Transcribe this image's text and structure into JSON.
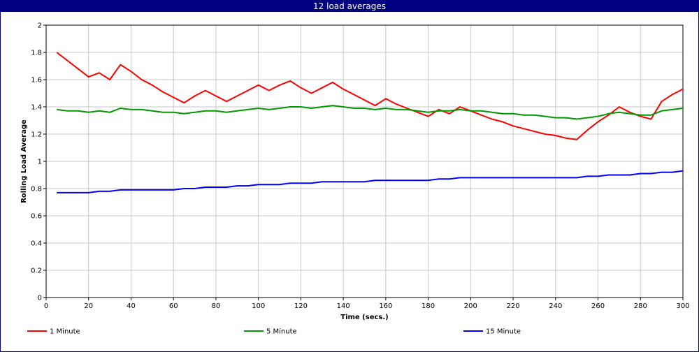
{
  "window": {
    "title": "12 load averages"
  },
  "chart_data": {
    "type": "line",
    "title": "12 load averages",
    "xlabel": "Time (secs.)",
    "ylabel": "Rolling Load Average",
    "xlim": [
      0,
      300
    ],
    "ylim": [
      0,
      2
    ],
    "x_ticks": [
      0,
      20,
      40,
      60,
      80,
      100,
      120,
      140,
      160,
      180,
      200,
      220,
      240,
      260,
      280,
      300
    ],
    "y_ticks": [
      0,
      0.2,
      0.4,
      0.6,
      0.8,
      1,
      1.2,
      1.4,
      1.6,
      1.8,
      2
    ],
    "grid": true,
    "legend_position": "bottom",
    "x": [
      5,
      10,
      15,
      20,
      25,
      30,
      35,
      40,
      45,
      50,
      55,
      60,
      65,
      70,
      75,
      80,
      85,
      90,
      95,
      100,
      105,
      110,
      115,
      120,
      125,
      130,
      135,
      140,
      145,
      150,
      155,
      160,
      165,
      170,
      175,
      180,
      185,
      190,
      195,
      200,
      205,
      210,
      215,
      220,
      225,
      230,
      235,
      240,
      245,
      250,
      255,
      260,
      265,
      270,
      275,
      280,
      285,
      290,
      295,
      300
    ],
    "series": [
      {
        "name": "1 Minute",
        "color": "#ff0000",
        "values": [
          1.8,
          1.74,
          1.68,
          1.62,
          1.65,
          1.6,
          1.71,
          1.66,
          1.6,
          1.56,
          1.51,
          1.47,
          1.43,
          1.48,
          1.52,
          1.48,
          1.44,
          1.48,
          1.52,
          1.56,
          1.52,
          1.56,
          1.59,
          1.54,
          1.5,
          1.54,
          1.58,
          1.53,
          1.49,
          1.45,
          1.41,
          1.46,
          1.42,
          1.39,
          1.36,
          1.33,
          1.38,
          1.35,
          1.4,
          1.37,
          1.34,
          1.31,
          1.29,
          1.26,
          1.24,
          1.22,
          1.2,
          1.19,
          1.17,
          1.16,
          1.23,
          1.29,
          1.34,
          1.4,
          1.36,
          1.33,
          1.31,
          1.44,
          1.49,
          1.53
        ]
      },
      {
        "name": "5 Minute",
        "color": "#009900",
        "values": [
          1.38,
          1.37,
          1.37,
          1.36,
          1.37,
          1.36,
          1.39,
          1.38,
          1.38,
          1.37,
          1.36,
          1.36,
          1.35,
          1.36,
          1.37,
          1.37,
          1.36,
          1.37,
          1.38,
          1.39,
          1.38,
          1.39,
          1.4,
          1.4,
          1.39,
          1.4,
          1.41,
          1.4,
          1.39,
          1.39,
          1.38,
          1.39,
          1.38,
          1.38,
          1.37,
          1.36,
          1.37,
          1.37,
          1.38,
          1.37,
          1.37,
          1.36,
          1.35,
          1.35,
          1.34,
          1.34,
          1.33,
          1.32,
          1.32,
          1.31,
          1.32,
          1.33,
          1.35,
          1.36,
          1.35,
          1.34,
          1.34,
          1.37,
          1.38,
          1.39
        ]
      },
      {
        "name": "15 Minute",
        "color": "#0000ff",
        "values": [
          0.77,
          0.77,
          0.77,
          0.77,
          0.78,
          0.78,
          0.79,
          0.79,
          0.79,
          0.79,
          0.79,
          0.79,
          0.8,
          0.8,
          0.81,
          0.81,
          0.81,
          0.82,
          0.82,
          0.83,
          0.83,
          0.83,
          0.84,
          0.84,
          0.84,
          0.85,
          0.85,
          0.85,
          0.85,
          0.85,
          0.86,
          0.86,
          0.86,
          0.86,
          0.86,
          0.86,
          0.87,
          0.87,
          0.88,
          0.88,
          0.88,
          0.88,
          0.88,
          0.88,
          0.88,
          0.88,
          0.88,
          0.88,
          0.88,
          0.88,
          0.89,
          0.89,
          0.9,
          0.9,
          0.9,
          0.91,
          0.91,
          0.92,
          0.92,
          0.93
        ]
      }
    ]
  }
}
